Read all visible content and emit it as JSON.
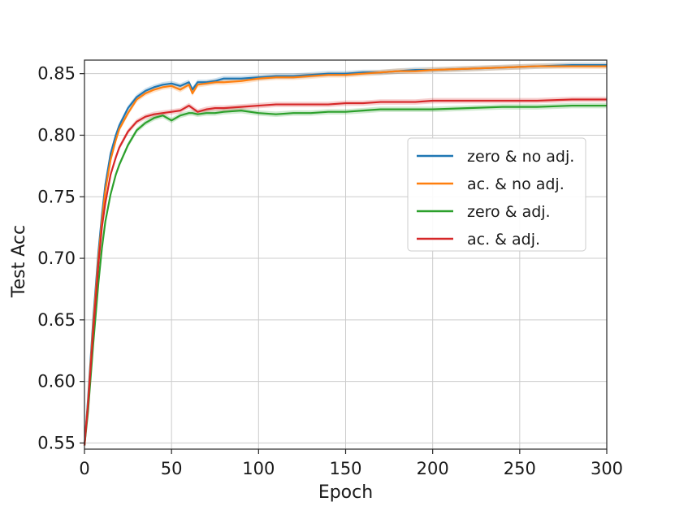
{
  "chart_data": {
    "type": "line",
    "title": "",
    "xlabel": "Epoch",
    "ylabel": "Test Acc",
    "xlim": [
      0,
      300
    ],
    "ylim": [
      0.545,
      0.861
    ],
    "x_ticks": [
      0,
      50,
      100,
      150,
      200,
      250,
      300
    ],
    "x_tick_labels": [
      "0",
      "50",
      "100",
      "150",
      "200",
      "250",
      "300"
    ],
    "y_ticks": [
      0.55,
      0.6,
      0.65,
      0.7,
      0.75,
      0.8,
      0.85
    ],
    "y_tick_labels": [
      "0.55",
      "0.60",
      "0.65",
      "0.70",
      "0.75",
      "0.80",
      "0.85"
    ],
    "grid": true,
    "legend_position": "center-right",
    "x": [
      0,
      2,
      5,
      8,
      10,
      12,
      15,
      18,
      20,
      25,
      30,
      35,
      40,
      45,
      50,
      55,
      60,
      62,
      65,
      70,
      75,
      80,
      90,
      100,
      110,
      120,
      130,
      140,
      150,
      160,
      170,
      180,
      190,
      200,
      220,
      240,
      260,
      280,
      300
    ],
    "series": [
      {
        "name": "zero & no adj.",
        "color": "#1f77b4",
        "values": [
          0.548,
          0.585,
          0.65,
          0.705,
          0.735,
          0.76,
          0.785,
          0.8,
          0.808,
          0.822,
          0.831,
          0.836,
          0.839,
          0.841,
          0.842,
          0.84,
          0.843,
          0.837,
          0.843,
          0.843,
          0.844,
          0.846,
          0.846,
          0.847,
          0.848,
          0.848,
          0.849,
          0.85,
          0.85,
          0.851,
          0.851,
          0.852,
          0.853,
          0.853,
          0.854,
          0.855,
          0.856,
          0.857,
          0.857
        ]
      },
      {
        "name": "ac. & no adj.",
        "color": "#ff7f0e",
        "values": [
          0.548,
          0.582,
          0.645,
          0.7,
          0.73,
          0.755,
          0.78,
          0.796,
          0.805,
          0.818,
          0.829,
          0.834,
          0.837,
          0.839,
          0.84,
          0.837,
          0.841,
          0.834,
          0.841,
          0.842,
          0.843,
          0.843,
          0.844,
          0.846,
          0.847,
          0.847,
          0.848,
          0.849,
          0.849,
          0.85,
          0.851,
          0.852,
          0.852,
          0.853,
          0.854,
          0.855,
          0.856,
          0.856,
          0.856
        ]
      },
      {
        "name": "zero & adj.",
        "color": "#2ca02c",
        "values": [
          0.548,
          0.575,
          0.63,
          0.68,
          0.708,
          0.73,
          0.752,
          0.768,
          0.776,
          0.792,
          0.804,
          0.81,
          0.814,
          0.816,
          0.812,
          0.816,
          0.818,
          0.818,
          0.817,
          0.818,
          0.818,
          0.819,
          0.82,
          0.818,
          0.817,
          0.818,
          0.818,
          0.819,
          0.819,
          0.82,
          0.821,
          0.821,
          0.821,
          0.821,
          0.822,
          0.823,
          0.823,
          0.824,
          0.824
        ]
      },
      {
        "name": "ac. & adj.",
        "color": "#d62728",
        "values": [
          0.548,
          0.58,
          0.64,
          0.695,
          0.725,
          0.745,
          0.768,
          0.782,
          0.79,
          0.803,
          0.811,
          0.815,
          0.817,
          0.818,
          0.819,
          0.82,
          0.824,
          0.822,
          0.819,
          0.821,
          0.822,
          0.822,
          0.823,
          0.824,
          0.825,
          0.825,
          0.825,
          0.825,
          0.826,
          0.826,
          0.827,
          0.827,
          0.827,
          0.828,
          0.828,
          0.828,
          0.828,
          0.829,
          0.829
        ]
      }
    ]
  }
}
